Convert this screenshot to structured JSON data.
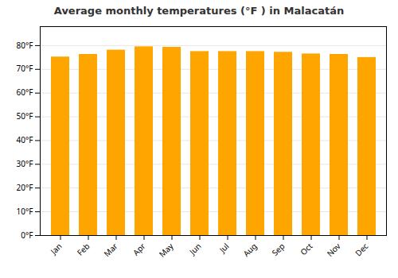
{
  "chart_data": {
    "type": "bar",
    "title": "Average monthly temperatures (°F ) in Malacatán",
    "categories": [
      "Jan",
      "Feb",
      "Mar",
      "Apr",
      "May",
      "Jun",
      "Jul",
      "Aug",
      "Sep",
      "Oct",
      "Nov",
      "Dec"
    ],
    "values": [
      75.2,
      76.3,
      78.1,
      79.5,
      79.3,
      77.5,
      77.5,
      77.5,
      77.2,
      76.5,
      76.3,
      75.0
    ],
    "color": "#FFA500",
    "ylim": [
      0,
      88
    ],
    "yticks": [
      {
        "value": 0,
        "label": "0°F"
      },
      {
        "value": 10,
        "label": "10°F"
      },
      {
        "value": 20,
        "label": "20°F"
      },
      {
        "value": 30,
        "label": "30°F"
      },
      {
        "value": 40,
        "label": "40°F"
      },
      {
        "value": 50,
        "label": "50°F"
      },
      {
        "value": 60,
        "label": "60°F"
      },
      {
        "value": 70,
        "label": "70°F"
      },
      {
        "value": 80,
        "label": "80°F"
      }
    ],
    "grid": true
  }
}
